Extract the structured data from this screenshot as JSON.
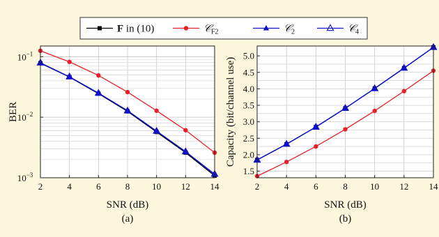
{
  "legend": {
    "items": [
      {
        "label_bold": "F",
        "label_rest": " in (10)",
        "color": "#000000",
        "marker": "square-filled"
      },
      {
        "label": "𝒞",
        "sub": "F2",
        "color": "#e8202a",
        "marker": "circle-filled"
      },
      {
        "label": "𝒞",
        "sub": "2",
        "color": "#1010c8",
        "marker": "triangle-filled"
      },
      {
        "label": "𝒞",
        "sub": "4",
        "color": "#1010c8",
        "marker": "triangle-open"
      }
    ]
  },
  "chart_data": [
    {
      "type": "line",
      "caption": "(a)",
      "xlabel": "SNR (dB)",
      "ylabel": "BER",
      "yscale": "log",
      "xlim": [
        2,
        14
      ],
      "ylim": [
        0.001,
        0.15
      ],
      "xticks": [
        "2",
        "4",
        "6",
        "8",
        "10",
        "12",
        "14"
      ],
      "yticks": [
        {
          "value": 0.1,
          "base": "10",
          "exp": "−1"
        },
        {
          "value": 0.01,
          "base": "10",
          "exp": "−2"
        },
        {
          "value": 0.001,
          "base": "10",
          "exp": "−3"
        }
      ],
      "grid": true,
      "x": [
        2,
        4,
        6,
        8,
        10,
        12,
        14
      ],
      "series": [
        {
          "name": "F in (10)",
          "color": "#000000",
          "marker": "square-filled",
          "values": [
            0.078,
            0.046,
            0.0245,
            0.0125,
            0.0057,
            0.0026,
            0.00108
          ]
        },
        {
          "name": "𝒞F2",
          "color": "#e8202a",
          "marker": "circle-filled",
          "values": [
            0.125,
            0.082,
            0.049,
            0.026,
            0.0128,
            0.0061,
            0.0026
          ]
        },
        {
          "name": "𝒞2",
          "color": "#1010c8",
          "marker": "triangle-filled",
          "values": [
            0.079,
            0.0465,
            0.025,
            0.0128,
            0.0059,
            0.0027,
            0.00113
          ]
        },
        {
          "name": "𝒞4",
          "color": "#1010c8",
          "marker": "triangle-open",
          "values": [
            0.079,
            0.0465,
            0.025,
            0.0128,
            0.0059,
            0.0027,
            0.00115
          ]
        }
      ]
    },
    {
      "type": "line",
      "caption": "(b)",
      "xlabel": "SNR (dB)",
      "ylabel": "Capacity (bit/channel use)",
      "yscale": "linear",
      "xlim": [
        2,
        14
      ],
      "ylim": [
        1.3,
        5.3
      ],
      "xticks": [
        "2",
        "4",
        "6",
        "8",
        "10",
        "12",
        "14"
      ],
      "yticks": [
        "1.5",
        "2.0",
        "2.5",
        "3.0",
        "3.5",
        "4.0",
        "4.5",
        "5.0"
      ],
      "grid": true,
      "x": [
        2,
        4,
        6,
        8,
        10,
        12,
        14
      ],
      "series": [
        {
          "name": "F in (10)",
          "color": "#000000",
          "marker": "square-filled",
          "values": [
            1.84,
            2.32,
            2.84,
            3.41,
            4.01,
            4.63,
            5.26
          ]
        },
        {
          "name": "𝒞F2",
          "color": "#e8202a",
          "marker": "circle-filled",
          "values": [
            1.35,
            1.78,
            2.25,
            2.77,
            3.33,
            3.93,
            4.55
          ]
        },
        {
          "name": "𝒞2",
          "color": "#1010c8",
          "marker": "triangle-filled",
          "values": [
            1.84,
            2.32,
            2.84,
            3.41,
            4.01,
            4.63,
            5.26
          ]
        },
        {
          "name": "𝒞4",
          "color": "#1010c8",
          "marker": "triangle-open",
          "values": [
            1.84,
            2.32,
            2.84,
            3.41,
            4.01,
            4.63,
            5.26
          ]
        }
      ]
    }
  ]
}
